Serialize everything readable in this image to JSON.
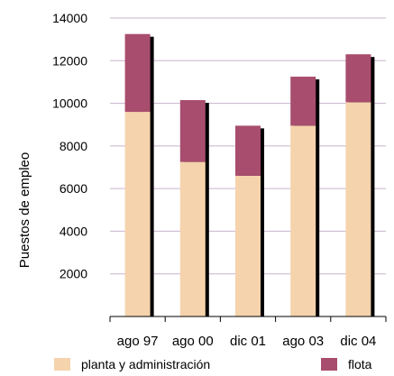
{
  "chart_data": {
    "type": "bar",
    "stacked": true,
    "ylabel": "Puestos de empleo",
    "xlabel": "",
    "ylim": [
      0,
      14000
    ],
    "yticks": [
      2000,
      4000,
      6000,
      8000,
      10000,
      12000,
      14000
    ],
    "grid": true,
    "legend_position": "bottom",
    "categories": [
      "ago 97",
      "ago 00",
      "dic 01",
      "ago 03",
      "dic 04"
    ],
    "series": [
      {
        "name": "planta y administración",
        "color": "#f5d3ac",
        "values": [
          9600,
          7250,
          6600,
          8950,
          10050
        ]
      },
      {
        "name": "flota",
        "color": "#a84d6e",
        "values": [
          3650,
          2900,
          2350,
          2300,
          2250
        ]
      }
    ],
    "shadow_color": "#000000",
    "grid_color": "#c9b3cf"
  }
}
